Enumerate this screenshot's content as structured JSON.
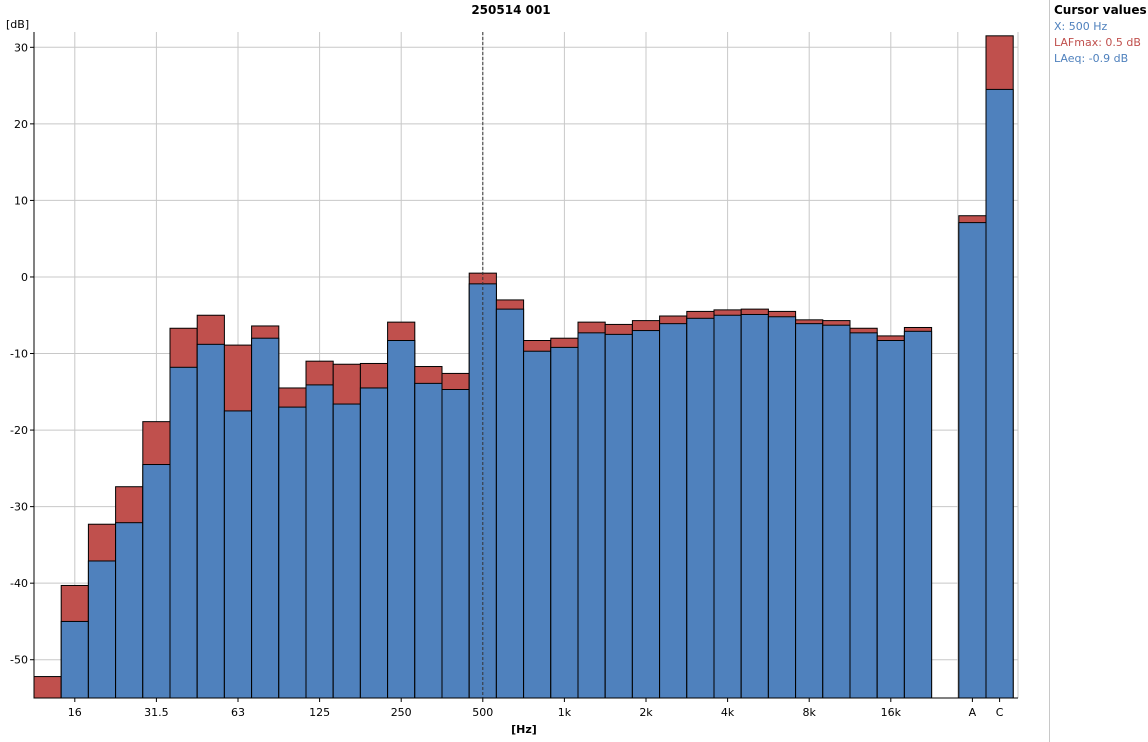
{
  "chart_data": {
    "type": "bar",
    "title": "250514 001",
    "ylabel": "[dB]",
    "xlabel": "[Hz]",
    "ylim": [
      -55,
      32
    ],
    "yticks": [
      30,
      20,
      10,
      0,
      -10,
      -20,
      -30,
      -40,
      -50
    ],
    "x_tick_labels": [
      "16",
      "31.5",
      "63",
      "125",
      "250",
      "500",
      "1k",
      "2k",
      "4k",
      "8k",
      "16k",
      "A",
      "C"
    ],
    "categories": [
      "12.5",
      "16",
      "20",
      "25",
      "31.5",
      "40",
      "50",
      "63",
      "80",
      "100",
      "125",
      "160",
      "200",
      "250",
      "315",
      "400",
      "500",
      "630",
      "800",
      "1k",
      "1.25k",
      "1.6k",
      "2k",
      "2.5k",
      "3.15k",
      "4k",
      "5k",
      "6.3k",
      "8k",
      "10k",
      "12.5k",
      "16k",
      "20k",
      "A",
      "C"
    ],
    "series": [
      {
        "name": "LAFmax",
        "color": "#c0504d",
        "values": [
          -52.2,
          -40.3,
          -32.3,
          -27.4,
          -18.9,
          -6.7,
          -5.0,
          -8.9,
          -6.4,
          -14.5,
          -11.0,
          -11.4,
          -11.3,
          -5.9,
          -11.7,
          -12.6,
          0.5,
          -3.0,
          -8.3,
          -8.0,
          -5.9,
          -6.2,
          -5.7,
          -5.1,
          -4.5,
          -4.3,
          -4.2,
          -4.5,
          -5.6,
          -5.7,
          -6.7,
          -7.7,
          -6.6,
          8.0,
          31.5
        ]
      },
      {
        "name": "LAeq",
        "color": "#4f81bd",
        "values": [
          -56.0,
          -45.0,
          -37.1,
          -32.1,
          -24.5,
          -11.8,
          -8.8,
          -17.5,
          -8.0,
          -17.0,
          -14.1,
          -16.6,
          -14.5,
          -8.3,
          -13.9,
          -14.7,
          -0.9,
          -4.2,
          -9.7,
          -9.2,
          -7.3,
          -7.5,
          -7.0,
          -6.1,
          -5.4,
          -5.0,
          -4.9,
          -5.2,
          -6.1,
          -6.3,
          -7.3,
          -8.3,
          -7.1,
          7.1,
          24.5
        ]
      }
    ],
    "cursor_category": "500",
    "grid": true
  },
  "cursor_panel": {
    "title": "Cursor values",
    "x_line": "X: 500 Hz",
    "lafmax_line": "LAFmax: 0.5 dB",
    "laeq_line": "LAeq: -0.9 dB",
    "x_color": "#4f81bd",
    "lafmax_color": "#c0504d",
    "laeq_color": "#4f81bd"
  }
}
